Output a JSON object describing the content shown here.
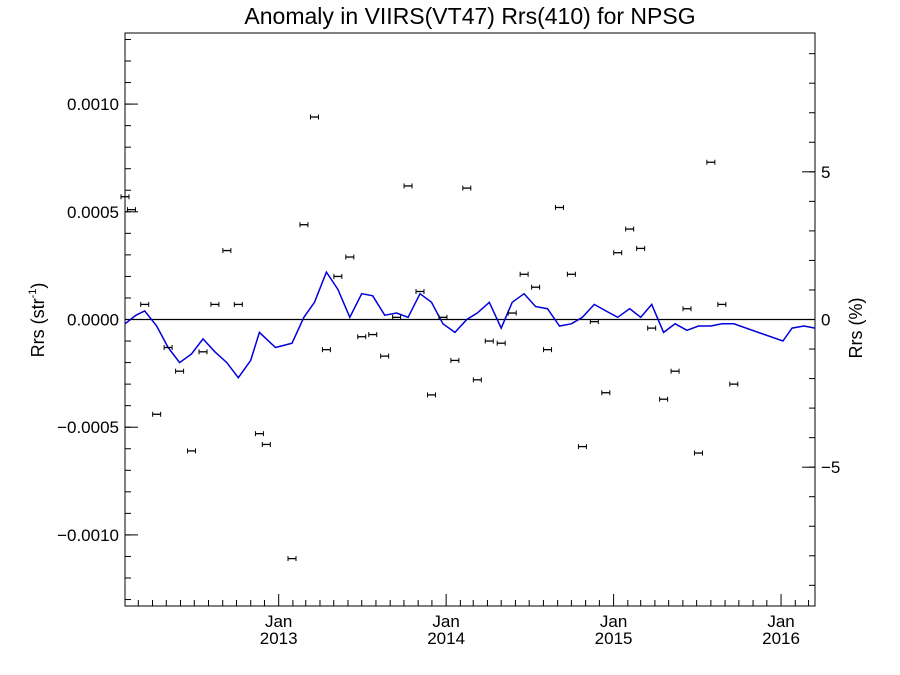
{
  "chart_data": {
    "type": "scatter",
    "title": "Anomaly in VIIRS(VT47) Rrs(410) for NPSG",
    "ylabel_base": "Rrs (str",
    "ylabel_sup": "-1",
    "ylabel_end": ")",
    "y2label": "Rrs (%)",
    "xlim": [
      "2012-02-01",
      "2016-03-15"
    ],
    "ylim": [
      -0.00133,
      0.00133
    ],
    "y2lim": [
      -9.7,
      9.7
    ],
    "grid": false,
    "y_ticks": [
      {
        "value": 0.001,
        "label": "0.0010"
      },
      {
        "value": 0.0005,
        "label": "0.0005"
      },
      {
        "value": 0.0,
        "label": "0.0000"
      },
      {
        "value": -0.0005,
        "label": "−0.0005"
      },
      {
        "value": -0.001,
        "label": "−0.0010"
      }
    ],
    "y2_ticks": [
      {
        "value": 5,
        "label": "5"
      },
      {
        "value": 0,
        "label": "0"
      },
      {
        "value": -5,
        "label": "−5"
      }
    ],
    "x_ticks": [
      {
        "date": "2013-01-01",
        "month": "Jan",
        "year": "2013"
      },
      {
        "date": "2014-01-01",
        "month": "Jan",
        "year": "2014"
      },
      {
        "date": "2015-01-01",
        "month": "Jan",
        "year": "2015"
      },
      {
        "date": "2016-01-01",
        "month": "Jan",
        "year": "2016"
      }
    ],
    "series": [
      {
        "style": "points-with-errorbars",
        "color": "#000000",
        "points": [
          {
            "x": "2012-02-01",
            "y": 0.00057
          },
          {
            "x": "2012-02-15",
            "y": 0.00051
          },
          {
            "x": "2012-03-15",
            "y": 7e-05
          },
          {
            "x": "2012-04-10",
            "y": -0.00044
          },
          {
            "x": "2012-05-05",
            "y": -0.00013
          },
          {
            "x": "2012-05-30",
            "y": -0.00024
          },
          {
            "x": "2012-06-25",
            "y": -0.00061
          },
          {
            "x": "2012-07-20",
            "y": -0.00015
          },
          {
            "x": "2012-08-15",
            "y": 7e-05
          },
          {
            "x": "2012-09-10",
            "y": 0.00032
          },
          {
            "x": "2012-10-05",
            "y": 7e-05
          },
          {
            "x": "2012-11-20",
            "y": -0.00053
          },
          {
            "x": "2012-12-05",
            "y": -0.00058
          },
          {
            "x": "2013-01-30",
            "y": -0.00111
          },
          {
            "x": "2013-02-25",
            "y": 0.00044
          },
          {
            "x": "2013-03-20",
            "y": 0.00094
          },
          {
            "x": "2013-04-15",
            "y": -0.00014
          },
          {
            "x": "2013-05-10",
            "y": 0.0002
          },
          {
            "x": "2013-06-05",
            "y": 0.00029
          },
          {
            "x": "2013-07-01",
            "y": -8e-05
          },
          {
            "x": "2013-07-25",
            "y": -7e-05
          },
          {
            "x": "2013-08-20",
            "y": -0.00017
          },
          {
            "x": "2013-09-15",
            "y": 1e-05
          },
          {
            "x": "2013-10-10",
            "y": 0.00062
          },
          {
            "x": "2013-11-05",
            "y": 0.00013
          },
          {
            "x": "2013-11-30",
            "y": -0.00035
          },
          {
            "x": "2013-12-25",
            "y": 1e-05
          },
          {
            "x": "2014-01-20",
            "y": -0.00019
          },
          {
            "x": "2014-02-15",
            "y": 0.00061
          },
          {
            "x": "2014-03-10",
            "y": -0.00028
          },
          {
            "x": "2014-04-05",
            "y": -0.0001
          },
          {
            "x": "2014-05-01",
            "y": -0.00011
          },
          {
            "x": "2014-05-25",
            "y": 3e-05
          },
          {
            "x": "2014-06-20",
            "y": 0.00021
          },
          {
            "x": "2014-07-15",
            "y": 0.00015
          },
          {
            "x": "2014-08-10",
            "y": -0.00014
          },
          {
            "x": "2014-09-05",
            "y": 0.00052
          },
          {
            "x": "2014-10-01",
            "y": 0.00021
          },
          {
            "x": "2014-10-25",
            "y": -0.00059
          },
          {
            "x": "2014-11-20",
            "y": -1e-05
          },
          {
            "x": "2014-12-15",
            "y": -0.00034
          },
          {
            "x": "2015-01-10",
            "y": 0.00031
          },
          {
            "x": "2015-02-05",
            "y": 0.00042
          },
          {
            "x": "2015-03-01",
            "y": 0.00033
          },
          {
            "x": "2015-03-25",
            "y": -4e-05
          },
          {
            "x": "2015-04-20",
            "y": -0.00037
          },
          {
            "x": "2015-05-15",
            "y": -0.00024
          },
          {
            "x": "2015-06-10",
            "y": 5e-05
          },
          {
            "x": "2015-07-05",
            "y": -0.00062
          },
          {
            "x": "2015-08-01",
            "y": 0.00073
          },
          {
            "x": "2015-08-25",
            "y": 7e-05
          },
          {
            "x": "2015-09-20",
            "y": -0.0003
          }
        ]
      },
      {
        "style": "line",
        "color": "#0000dd",
        "points": [
          {
            "x": "2012-02-01",
            "y": -2e-05
          },
          {
            "x": "2012-02-25",
            "y": 2e-05
          },
          {
            "x": "2012-03-15",
            "y": 4e-05
          },
          {
            "x": "2012-04-10",
            "y": -3e-05
          },
          {
            "x": "2012-05-05",
            "y": -0.00013
          },
          {
            "x": "2012-05-30",
            "y": -0.0002
          },
          {
            "x": "2012-06-25",
            "y": -0.00016
          },
          {
            "x": "2012-07-20",
            "y": -9e-05
          },
          {
            "x": "2012-08-15",
            "y": -0.00015
          },
          {
            "x": "2012-09-10",
            "y": -0.0002
          },
          {
            "x": "2012-10-05",
            "y": -0.00027
          },
          {
            "x": "2012-11-01",
            "y": -0.00019
          },
          {
            "x": "2012-11-20",
            "y": -6e-05
          },
          {
            "x": "2012-12-25",
            "y": -0.00013
          },
          {
            "x": "2013-01-30",
            "y": -0.00011
          },
          {
            "x": "2013-02-25",
            "y": 1e-05
          },
          {
            "x": "2013-03-20",
            "y": 8e-05
          },
          {
            "x": "2013-04-15",
            "y": 0.00022
          },
          {
            "x": "2013-05-10",
            "y": 0.00014
          },
          {
            "x": "2013-06-05",
            "y": 1e-05
          },
          {
            "x": "2013-07-01",
            "y": 0.00012
          },
          {
            "x": "2013-07-25",
            "y": 0.00011
          },
          {
            "x": "2013-08-20",
            "y": 2e-05
          },
          {
            "x": "2013-09-15",
            "y": 3e-05
          },
          {
            "x": "2013-10-10",
            "y": 1e-05
          },
          {
            "x": "2013-11-05",
            "y": 0.00012
          },
          {
            "x": "2013-11-30",
            "y": 8e-05
          },
          {
            "x": "2013-12-25",
            "y": -2e-05
          },
          {
            "x": "2014-01-20",
            "y": -6e-05
          },
          {
            "x": "2014-02-15",
            "y": 0.0
          },
          {
            "x": "2014-03-10",
            "y": 3e-05
          },
          {
            "x": "2014-04-05",
            "y": 8e-05
          },
          {
            "x": "2014-05-01",
            "y": -4e-05
          },
          {
            "x": "2014-05-25",
            "y": 8e-05
          },
          {
            "x": "2014-06-20",
            "y": 0.00012
          },
          {
            "x": "2014-07-15",
            "y": 6e-05
          },
          {
            "x": "2014-08-10",
            "y": 5e-05
          },
          {
            "x": "2014-09-05",
            "y": -3e-05
          },
          {
            "x": "2014-10-01",
            "y": -2e-05
          },
          {
            "x": "2014-10-25",
            "y": 1e-05
          },
          {
            "x": "2014-11-20",
            "y": 7e-05
          },
          {
            "x": "2014-12-15",
            "y": 4e-05
          },
          {
            "x": "2015-01-10",
            "y": 1e-05
          },
          {
            "x": "2015-02-05",
            "y": 5e-05
          },
          {
            "x": "2015-03-01",
            "y": 1e-05
          },
          {
            "x": "2015-03-25",
            "y": 7e-05
          },
          {
            "x": "2015-04-20",
            "y": -6e-05
          },
          {
            "x": "2015-05-15",
            "y": -2e-05
          },
          {
            "x": "2015-06-10",
            "y": -5e-05
          },
          {
            "x": "2015-07-05",
            "y": -3e-05
          },
          {
            "x": "2015-08-01",
            "y": -3e-05
          },
          {
            "x": "2015-08-25",
            "y": -2e-05
          },
          {
            "x": "2015-09-20",
            "y": -2e-05
          },
          {
            "x": "2016-01-05",
            "y": -0.0001
          },
          {
            "x": "2016-01-25",
            "y": -4e-05
          },
          {
            "x": "2016-02-20",
            "y": -3e-05
          },
          {
            "x": "2016-03-15",
            "y": -4e-05
          }
        ]
      }
    ]
  }
}
